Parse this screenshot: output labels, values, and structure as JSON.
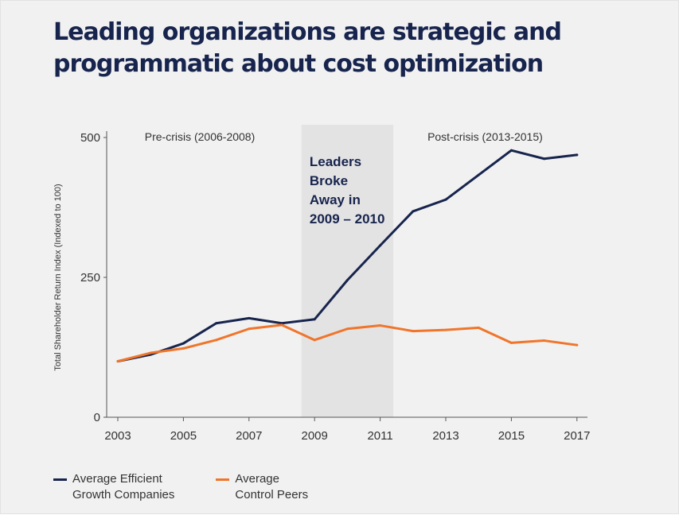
{
  "title": "Leading organizations are strategic and programmatic about cost optimization",
  "colors": {
    "background": "#f1f1f1",
    "title": "#17244d",
    "series_navy": "#17244d",
    "series_orange": "#f0752b",
    "band": "#e3e3e3"
  },
  "chart_data": {
    "type": "line",
    "ylabel": "Total Shareholder Return Index (Indexed to 100)",
    "xlabel": "",
    "ylim": [
      0,
      500
    ],
    "yticks": [
      0,
      250,
      500
    ],
    "xticks": [
      2003,
      2005,
      2007,
      2009,
      2011,
      2013,
      2015,
      2017
    ],
    "xlim": [
      2002.8,
      2017.5
    ],
    "grid": false,
    "legend_position": "bottom-left",
    "shaded_region": {
      "x_start": 2008.6,
      "x_end": 2011.4
    },
    "annotations": [
      {
        "text": "Pre-crisis (2006-2008)",
        "x": 2005.5,
        "y": 505
      },
      {
        "text": "Post-crisis (2013-2015)",
        "x": 2014.2,
        "y": 505
      },
      {
        "lines": [
          "Leaders",
          "Broke",
          "Away in",
          "2009 – 2010"
        ],
        "x": 2008.75,
        "y": 465
      }
    ],
    "series": [
      {
        "name": "Average Efficient Growth Companies",
        "legend_lines": [
          "Average Efficient",
          "Growth Companies"
        ],
        "color": "#17244d",
        "x": [
          2003,
          2004,
          2005,
          2006,
          2007,
          2008,
          2009,
          2010,
          2011,
          2012,
          2013,
          2014,
          2015,
          2016,
          2017
        ],
        "values": [
          100,
          112,
          132,
          168,
          177,
          168,
          175,
          245,
          307,
          368,
          389,
          433,
          477,
          462,
          469
        ]
      },
      {
        "name": "Average Control Peers",
        "legend_lines": [
          "Average",
          "Control Peers"
        ],
        "color": "#f0752b",
        "x": [
          2003,
          2004,
          2005,
          2006,
          2007,
          2008,
          2009,
          2010,
          2011,
          2012,
          2013,
          2014,
          2015,
          2016,
          2017
        ],
        "values": [
          100,
          115,
          123,
          138,
          158,
          165,
          138,
          158,
          164,
          154,
          156,
          160,
          133,
          137,
          129
        ]
      }
    ]
  }
}
